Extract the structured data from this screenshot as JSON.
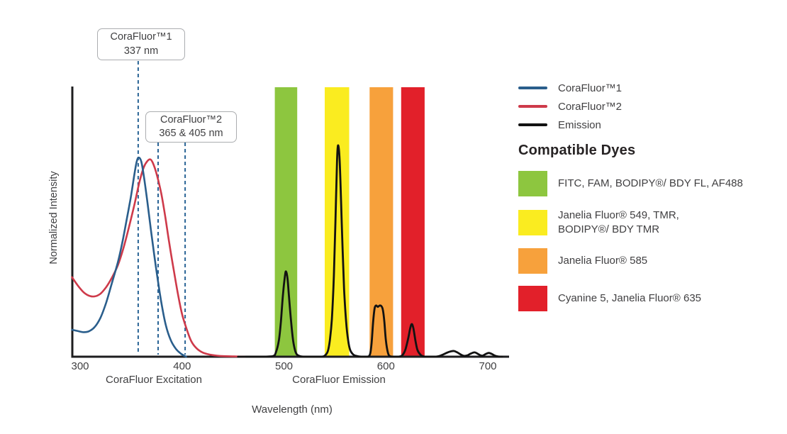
{
  "page": {
    "background": "#ffffff"
  },
  "chart_data": {
    "type": "line",
    "title": "",
    "xlabel": "Wavelength (nm)",
    "ylabel": "Normalized Intensity",
    "xlim": [
      292,
      721
    ],
    "ylim": [
      0,
      1.02
    ],
    "x_ticks": [
      300,
      400,
      500,
      600,
      700
    ],
    "grid": false,
    "legend_position": "right",
    "dash_color": "#2A6496",
    "axis_color": "#1D1D1F",
    "tick_label_color": "#3F3F41",
    "axis_section_labels": [
      {
        "text": "CoraFluor Excitation"
      },
      {
        "text": "CoraFluor Emission"
      }
    ],
    "annotations": [
      {
        "title": "CoraFluor™1",
        "label": "337 nm",
        "dash_x_nm": [
          357
        ]
      },
      {
        "title": "CoraFluor™2",
        "label": "365 & 405 nm",
        "dash_x_nm": [
          376.5,
          403
        ]
      }
    ],
    "series": [
      {
        "name": "CoraFluor™1",
        "color": "#2A5E8C",
        "points": [
          [
            292,
            0.1
          ],
          [
            298,
            0.095
          ],
          [
            303.5,
            0.091
          ],
          [
            309,
            0.095
          ],
          [
            314.5,
            0.111
          ],
          [
            320,
            0.145
          ],
          [
            325.5,
            0.2
          ],
          [
            331,
            0.271
          ],
          [
            337,
            0.35
          ],
          [
            341,
            0.416
          ],
          [
            345,
            0.495
          ],
          [
            349.5,
            0.587
          ],
          [
            353,
            0.671
          ],
          [
            355.5,
            0.724
          ],
          [
            357.5,
            0.739
          ],
          [
            360,
            0.724
          ],
          [
            362.5,
            0.671
          ],
          [
            366,
            0.574
          ],
          [
            370,
            0.455
          ],
          [
            374.5,
            0.329
          ],
          [
            379.5,
            0.205
          ],
          [
            384,
            0.118
          ],
          [
            389,
            0.061
          ],
          [
            394,
            0.029
          ],
          [
            399,
            0.011
          ],
          [
            404,
            0
          ]
        ]
      },
      {
        "name": "CoraFluor™2",
        "color": "#CE3A4A",
        "points": [
          [
            292,
            0.295
          ],
          [
            298,
            0.263
          ],
          [
            303.5,
            0.239
          ],
          [
            309,
            0.226
          ],
          [
            314.5,
            0.224
          ],
          [
            320,
            0.234
          ],
          [
            325.5,
            0.258
          ],
          [
            331,
            0.292
          ],
          [
            337,
            0.339
          ],
          [
            342.5,
            0.403
          ],
          [
            348,
            0.482
          ],
          [
            353.5,
            0.568
          ],
          [
            358.5,
            0.653
          ],
          [
            362.5,
            0.703
          ],
          [
            366,
            0.726
          ],
          [
            369,
            0.732
          ],
          [
            371.5,
            0.718
          ],
          [
            375,
            0.679
          ],
          [
            379.5,
            0.608
          ],
          [
            383.5,
            0.521
          ],
          [
            387.5,
            0.421
          ],
          [
            392,
            0.318
          ],
          [
            396,
            0.232
          ],
          [
            400,
            0.158
          ],
          [
            404.5,
            0.103
          ],
          [
            409,
            0.058
          ],
          [
            414,
            0.032
          ],
          [
            420,
            0.016
          ],
          [
            427,
            0.008
          ],
          [
            437,
            0.003
          ],
          [
            451,
            0.001
          ],
          [
            462,
            0
          ]
        ]
      },
      {
        "name": "Emission",
        "color": "#121212",
        "points": [
          [
            455,
            0
          ],
          [
            478,
            0
          ],
          [
            489,
            0.002
          ],
          [
            492,
            0.015
          ],
          [
            495,
            0.06
          ],
          [
            497,
            0.13
          ],
          [
            499,
            0.23
          ],
          [
            501,
            0.3
          ],
          [
            502,
            0.316
          ],
          [
            503.5,
            0.29
          ],
          [
            505,
            0.22
          ],
          [
            507,
            0.13
          ],
          [
            509,
            0.06
          ],
          [
            511,
            0.022
          ],
          [
            513,
            0.007
          ],
          [
            517,
            0.001
          ],
          [
            524,
            0
          ],
          [
            536,
            0
          ],
          [
            540,
            0.004
          ],
          [
            543,
            0.02
          ],
          [
            545,
            0.06
          ],
          [
            547,
            0.14
          ],
          [
            549,
            0.3
          ],
          [
            550.5,
            0.5
          ],
          [
            552,
            0.72
          ],
          [
            553,
            0.784
          ],
          [
            554.5,
            0.74
          ],
          [
            556,
            0.58
          ],
          [
            557.5,
            0.4
          ],
          [
            559,
            0.25
          ],
          [
            561,
            0.13
          ],
          [
            563,
            0.06
          ],
          [
            565,
            0.025
          ],
          [
            568,
            0.008
          ],
          [
            572,
            0.002
          ],
          [
            577,
            0
          ],
          [
            582,
            0
          ],
          [
            584.5,
            0.01
          ],
          [
            586,
            0.05
          ],
          [
            587.5,
            0.13
          ],
          [
            589,
            0.18
          ],
          [
            590.5,
            0.19
          ],
          [
            592,
            0.185
          ],
          [
            594,
            0.19
          ],
          [
            595.5,
            0.188
          ],
          [
            597,
            0.175
          ],
          [
            598.5,
            0.13
          ],
          [
            600,
            0.06
          ],
          [
            602,
            0.015
          ],
          [
            604,
            0.002
          ],
          [
            608,
            0
          ],
          [
            612,
            0
          ],
          [
            616,
            0.005
          ],
          [
            619,
            0.025
          ],
          [
            622,
            0.07
          ],
          [
            624,
            0.108
          ],
          [
            625.5,
            0.121
          ],
          [
            627,
            0.105
          ],
          [
            629,
            0.06
          ],
          [
            631,
            0.025
          ],
          [
            634,
            0.007
          ],
          [
            637,
            0.001
          ],
          [
            641,
            0
          ],
          [
            648,
            0
          ],
          [
            652,
            0.002
          ],
          [
            656,
            0.008
          ],
          [
            660,
            0.015
          ],
          [
            664,
            0.02
          ],
          [
            667,
            0.021
          ],
          [
            670,
            0.016
          ],
          [
            674,
            0.007
          ],
          [
            677,
            0.003
          ],
          [
            680,
            0.005
          ],
          [
            683,
            0.011
          ],
          [
            687,
            0.016
          ],
          [
            690,
            0.011
          ],
          [
            693,
            0.005
          ],
          [
            695,
            0.004
          ],
          [
            698,
            0.01
          ],
          [
            701,
            0.014
          ],
          [
            704,
            0.01
          ],
          [
            707,
            0.004
          ],
          [
            710,
            0.001
          ],
          [
            714,
            0
          ]
        ]
      }
    ],
    "bands": [
      {
        "color": "#8DC63F",
        "from_nm": 491,
        "to_nm": 513,
        "display_lines": [
          "FITC, FAM, BODIPY®/ BDY FL, AF488"
        ]
      },
      {
        "color": "#FAEC20",
        "from_nm": 540,
        "to_nm": 564,
        "display_lines": [
          "Janelia Fluor® 549, TMR,",
          "BODIPY®/ BDY TMR"
        ]
      },
      {
        "color": "#F7A13C",
        "from_nm": 584,
        "to_nm": 607,
        "display_lines": [
          "Janelia Fluor® 585"
        ]
      },
      {
        "color": "#E2202A",
        "from_nm": 615,
        "to_nm": 638,
        "display_lines": [
          "Cyanine 5, Janelia Fluor® 635"
        ]
      }
    ]
  },
  "legend": {
    "heading": "Compatible Dyes"
  }
}
